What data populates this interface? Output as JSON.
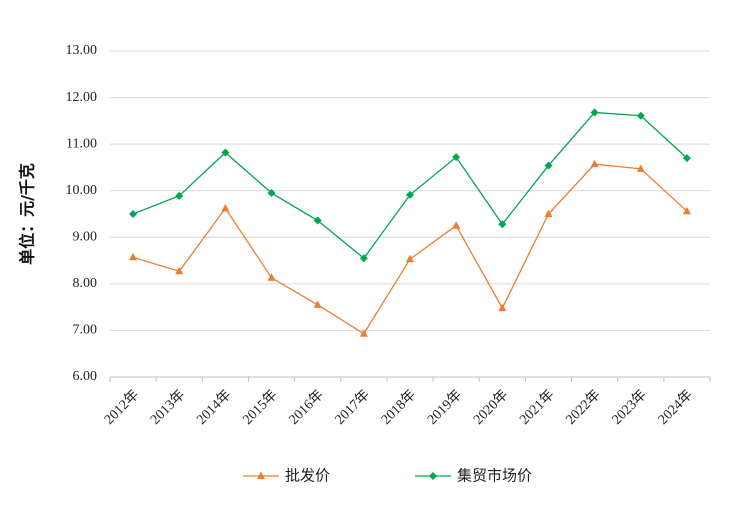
{
  "chart_data": {
    "type": "line",
    "ylabel": "单位：元/千克",
    "ylim": [
      6,
      13
    ],
    "ytick_step": 1,
    "ytick_decimals": 2,
    "grid": true,
    "legend_position": "bottom",
    "categories": [
      "2012年",
      "2013年",
      "2014年",
      "2015年",
      "2016年",
      "2017年",
      "2018年",
      "2019年",
      "2020年",
      "2021年",
      "2022年",
      "2023年",
      "2024年"
    ],
    "series": [
      {
        "name": "批发价",
        "marker": "triangle",
        "color": "#ED7D31",
        "values": [
          8.57,
          8.27,
          9.62,
          8.13,
          7.55,
          6.93,
          8.53,
          9.25,
          7.48,
          9.5,
          10.57,
          10.47,
          9.56
        ]
      },
      {
        "name": "集贸市场价",
        "marker": "diamond",
        "color": "#00A651",
        "values": [
          9.5,
          9.89,
          10.82,
          9.95,
          9.36,
          8.55,
          9.91,
          10.72,
          9.28,
          10.54,
          11.68,
          11.61,
          10.7
        ]
      }
    ]
  }
}
